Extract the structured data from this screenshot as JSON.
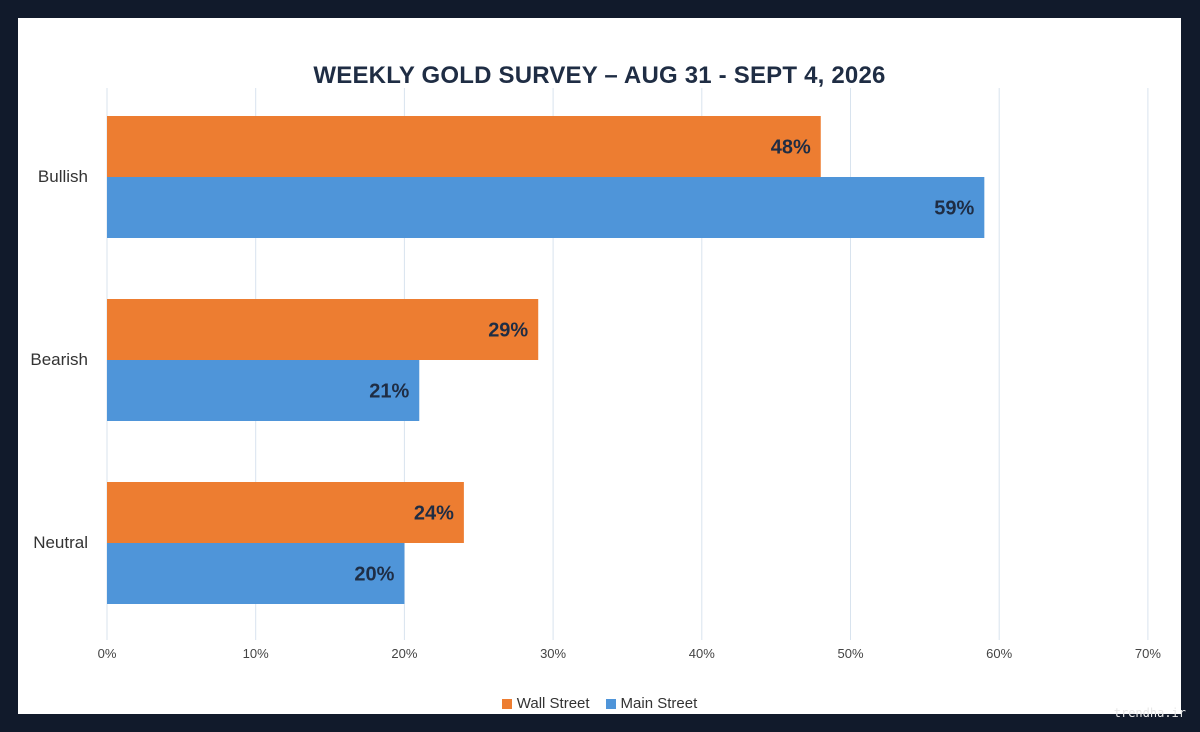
{
  "chart_data": {
    "type": "bar",
    "orientation": "horizontal",
    "title": "WEEKLY GOLD SURVEY – AUG 31 - SEPT 4, 2026",
    "categories": [
      "Bullish",
      "Bearish",
      "Neutral"
    ],
    "series": [
      {
        "name": "Wall Street",
        "values": [
          48,
          29,
          24
        ],
        "color": "#ed7d31"
      },
      {
        "name": "Main Street",
        "values": [
          59,
          21,
          20
        ],
        "color": "#4f95d9"
      }
    ],
    "data_labels": [
      [
        "48%",
        "29%",
        "24%"
      ],
      [
        "59%",
        "21%",
        "20%"
      ]
    ],
    "xlim": [
      0,
      70
    ],
    "xticks": [
      "0%",
      "10%",
      "20%",
      "30%",
      "40%",
      "50%",
      "60%",
      "70%"
    ],
    "grid": true,
    "legend_position": "bottom"
  },
  "watermark": "trendha.ir"
}
